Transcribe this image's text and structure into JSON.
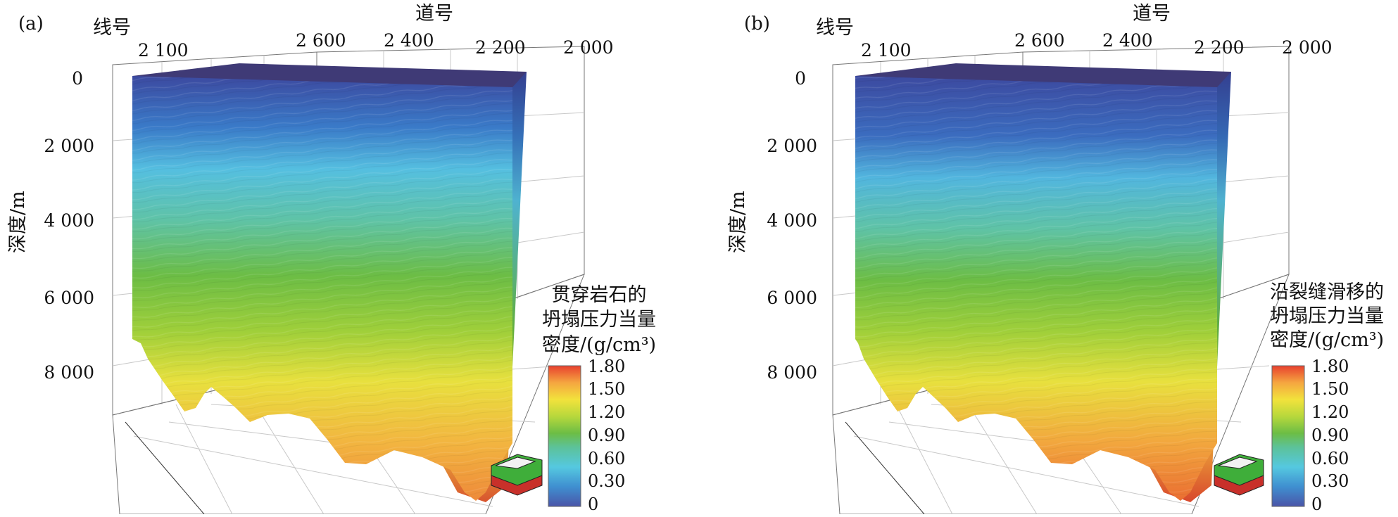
{
  "panels": [
    {
      "label": "(a)",
      "line_axis_title": "线号",
      "line_ticks": [
        "2 100"
      ],
      "trace_axis_title": "道号",
      "trace_ticks": [
        "2 600",
        "2 400",
        "2 200",
        "2 000"
      ],
      "depth_axis_title": "深度/m",
      "depth_ticks": [
        "0",
        "2 000",
        "4 000",
        "6 000",
        "8 000"
      ],
      "colorbar_title": [
        "贯穿岩石的",
        "坍塌压力当量",
        "密度/(g/cm³)"
      ],
      "colorbar_ticks": [
        "1.80",
        "1.50",
        "1.20",
        "0.90",
        "0.60",
        "0.30",
        "0"
      ],
      "colorbar_range": [
        0,
        1.8
      ],
      "top_color": "#3f3a76"
    },
    {
      "label": "(b)",
      "line_axis_title": "线号",
      "line_ticks": [
        "2 100"
      ],
      "trace_axis_title": "道号",
      "trace_ticks": [
        "2 600",
        "2 400",
        "2 200",
        "2 000"
      ],
      "depth_axis_title": "深度/m",
      "depth_ticks": [
        "0",
        "2 000",
        "4 000",
        "6 000",
        "8 000"
      ],
      "colorbar_title": [
        "沿裂缝滑移的",
        "坍塌压力当量",
        "密度/(g/cm³)"
      ],
      "colorbar_ticks": [
        "1.80",
        "1.50",
        "1.20",
        "0.90",
        "0.60",
        "0.30",
        "0"
      ],
      "colorbar_range": [
        0,
        1.8
      ],
      "top_color": "#3f3a76"
    }
  ],
  "colors": {
    "gradient": [
      "#4a55a8",
      "#3f8fd0",
      "#55c8e0",
      "#5cc29a",
      "#6cbd45",
      "#b7d83c",
      "#f2e23c",
      "#f5a640",
      "#e8402e"
    ],
    "volume_front": [
      "#3c4aa0",
      "#3a7ac8",
      "#55bfe0",
      "#5fc3a6",
      "#6cbd45",
      "#9fcf3a",
      "#e8e03e",
      "#f2b640",
      "#ee8a3a"
    ],
    "compass_green": "#3fae3a",
    "compass_red": "#c8302a"
  }
}
